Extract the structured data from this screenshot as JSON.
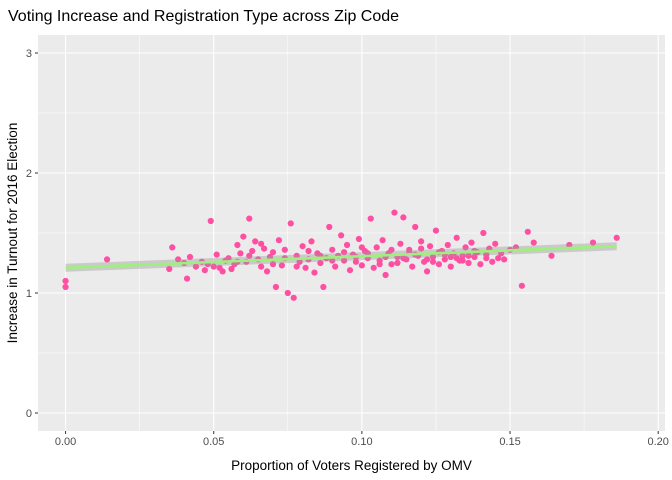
{
  "chart_data": {
    "type": "scatter",
    "title": "Voting Increase and Registration Type across Zip Code",
    "xlabel": "Proportion of Voters Registered by OMV",
    "ylabel": "Increase in Turnout for 2016 Election",
    "xlim": [
      -0.0093,
      0.2023
    ],
    "ylim": [
      -0.15,
      3.15
    ],
    "xticks": [
      "0.00",
      "0.05",
      "0.10",
      "0.15",
      "0.20"
    ],
    "yticks": [
      "0",
      "1",
      "2",
      "3"
    ],
    "grid": true,
    "legend": "none",
    "point_color": "#ff4fa3",
    "trend_color": "#9ef07c",
    "trend_line": {
      "x": [
        0.0,
        0.186
      ],
      "y": [
        1.21,
        1.39
      ]
    },
    "points": [
      [
        0.0,
        1.1
      ],
      [
        0.0,
        1.05
      ],
      [
        0.014,
        1.28
      ],
      [
        0.035,
        1.2
      ],
      [
        0.036,
        1.38
      ],
      [
        0.038,
        1.28
      ],
      [
        0.04,
        1.25
      ],
      [
        0.041,
        1.12
      ],
      [
        0.042,
        1.3
      ],
      [
        0.044,
        1.22
      ],
      [
        0.046,
        1.26
      ],
      [
        0.047,
        1.19
      ],
      [
        0.048,
        1.24
      ],
      [
        0.049,
        1.6
      ],
      [
        0.05,
        1.22
      ],
      [
        0.051,
        1.32
      ],
      [
        0.052,
        1.21
      ],
      [
        0.053,
        1.18
      ],
      [
        0.054,
        1.27
      ],
      [
        0.055,
        1.29
      ],
      [
        0.056,
        1.2
      ],
      [
        0.057,
        1.24
      ],
      [
        0.058,
        1.4
      ],
      [
        0.059,
        1.33
      ],
      [
        0.06,
        1.47
      ],
      [
        0.061,
        1.26
      ],
      [
        0.062,
        1.62
      ],
      [
        0.063,
        1.35
      ],
      [
        0.064,
        1.43
      ],
      [
        0.065,
        1.28
      ],
      [
        0.066,
        1.22
      ],
      [
        0.067,
        1.37
      ],
      [
        0.068,
        1.18
      ],
      [
        0.069,
        1.3
      ],
      [
        0.07,
        1.34
      ],
      [
        0.071,
        1.05
      ],
      [
        0.072,
        1.44
      ],
      [
        0.073,
        1.23
      ],
      [
        0.074,
        1.36
      ],
      [
        0.075,
        1.0
      ],
      [
        0.076,
        1.58
      ],
      [
        0.077,
        0.96
      ],
      [
        0.078,
        1.31
      ],
      [
        0.079,
        1.26
      ],
      [
        0.08,
        1.39
      ],
      [
        0.081,
        1.21
      ],
      [
        0.082,
        1.28
      ],
      [
        0.083,
        1.43
      ],
      [
        0.084,
        1.17
      ],
      [
        0.085,
        1.33
      ],
      [
        0.086,
        1.25
      ],
      [
        0.087,
        1.05
      ],
      [
        0.088,
        1.29
      ],
      [
        0.089,
        1.55
      ],
      [
        0.09,
        1.36
      ],
      [
        0.091,
        1.22
      ],
      [
        0.092,
        1.31
      ],
      [
        0.093,
        1.48
      ],
      [
        0.094,
        1.27
      ],
      [
        0.095,
        1.4
      ],
      [
        0.096,
        1.19
      ],
      [
        0.097,
        1.32
      ],
      [
        0.098,
        1.26
      ],
      [
        0.099,
        1.45
      ],
      [
        0.1,
        1.23
      ],
      [
        0.101,
        1.35
      ],
      [
        0.102,
        1.29
      ],
      [
        0.103,
        1.62
      ],
      [
        0.104,
        1.21
      ],
      [
        0.105,
        1.38
      ],
      [
        0.106,
        1.27
      ],
      [
        0.107,
        1.44
      ],
      [
        0.108,
        1.15
      ],
      [
        0.109,
        1.33
      ],
      [
        0.11,
        1.24
      ],
      [
        0.111,
        1.67
      ],
      [
        0.112,
        1.3
      ],
      [
        0.113,
        1.41
      ],
      [
        0.114,
        1.63
      ],
      [
        0.115,
        1.28
      ],
      [
        0.116,
        1.36
      ],
      [
        0.117,
        1.22
      ],
      [
        0.118,
        1.55
      ],
      [
        0.119,
        1.31
      ],
      [
        0.12,
        1.43
      ],
      [
        0.121,
        1.26
      ],
      [
        0.122,
        1.18
      ],
      [
        0.123,
        1.39
      ],
      [
        0.124,
        1.3
      ],
      [
        0.125,
        1.52
      ],
      [
        0.126,
        1.24
      ],
      [
        0.127,
        1.35
      ],
      [
        0.128,
        1.28
      ],
      [
        0.129,
        1.4
      ],
      [
        0.13,
        1.22
      ],
      [
        0.131,
        1.33
      ],
      [
        0.132,
        1.46
      ],
      [
        0.133,
        1.27
      ],
      [
        0.134,
        1.31
      ],
      [
        0.135,
        1.38
      ],
      [
        0.136,
        1.25
      ],
      [
        0.137,
        1.42
      ],
      [
        0.138,
        1.3
      ],
      [
        0.139,
        1.34
      ],
      [
        0.14,
        1.24
      ],
      [
        0.141,
        1.5
      ],
      [
        0.142,
        1.29
      ],
      [
        0.143,
        1.37
      ],
      [
        0.144,
        1.26
      ],
      [
        0.145,
        1.41
      ],
      [
        0.147,
        1.33
      ],
      [
        0.148,
        1.28
      ],
      [
        0.15,
        1.36
      ],
      [
        0.152,
        1.38
      ],
      [
        0.154,
        1.06
      ],
      [
        0.156,
        1.51
      ],
      [
        0.158,
        1.42
      ],
      [
        0.164,
        1.31
      ],
      [
        0.17,
        1.4
      ],
      [
        0.178,
        1.42
      ],
      [
        0.186,
        1.46
      ],
      [
        0.058,
        1.26
      ],
      [
        0.062,
        1.31
      ],
      [
        0.066,
        1.41
      ],
      [
        0.07,
        1.24
      ],
      [
        0.074,
        1.29
      ],
      [
        0.078,
        1.22
      ],
      [
        0.082,
        1.35
      ],
      [
        0.086,
        1.31
      ],
      [
        0.09,
        1.27
      ],
      [
        0.094,
        1.34
      ],
      [
        0.098,
        1.3
      ],
      [
        0.102,
        1.33
      ],
      [
        0.106,
        1.24
      ],
      [
        0.11,
        1.36
      ],
      [
        0.114,
        1.29
      ],
      [
        0.118,
        1.32
      ],
      [
        0.122,
        1.28
      ],
      [
        0.126,
        1.34
      ],
      [
        0.13,
        1.3
      ],
      [
        0.134,
        1.27
      ],
      [
        0.138,
        1.35
      ],
      [
        0.142,
        1.32
      ],
      [
        0.146,
        1.29
      ],
      [
        0.1,
        1.38
      ],
      [
        0.108,
        1.3
      ],
      [
        0.112,
        1.25
      ],
      [
        0.116,
        1.34
      ],
      [
        0.12,
        1.37
      ],
      [
        0.124,
        1.26
      ],
      [
        0.128,
        1.32
      ],
      [
        0.132,
        1.29
      ],
      [
        0.136,
        1.31
      ]
    ]
  }
}
